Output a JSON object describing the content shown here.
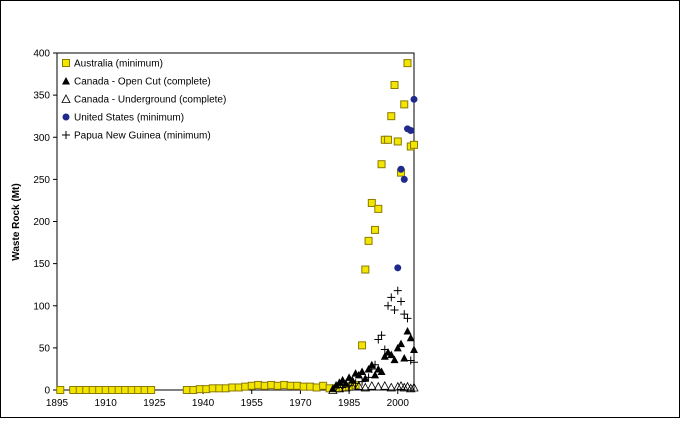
{
  "chart_data": {
    "type": "scatter",
    "ylabel": "Waste Rock (Mt)",
    "xlabel": "",
    "xlim": [
      1895,
      2005
    ],
    "ylim": [
      0,
      400
    ],
    "x_ticks": [
      "1895",
      "1910",
      "1925",
      "1940",
      "1955",
      "1970",
      "1985",
      "2000"
    ],
    "y_ticks": [
      "0",
      "50",
      "100",
      "150",
      "200",
      "250",
      "300",
      "350",
      "400"
    ],
    "legend_position": "top-left",
    "grid": false,
    "series": [
      {
        "name": "Australia (minimum)",
        "marker": "square",
        "color": "#f2e600",
        "edge": "#8c7a00",
        "points": [
          [
            1896,
            0
          ],
          [
            1900,
            0
          ],
          [
            1902,
            0
          ],
          [
            1904,
            0
          ],
          [
            1906,
            0
          ],
          [
            1908,
            0
          ],
          [
            1910,
            0
          ],
          [
            1912,
            0
          ],
          [
            1914,
            0
          ],
          [
            1916,
            0
          ],
          [
            1918,
            0
          ],
          [
            1920,
            0
          ],
          [
            1922,
            0
          ],
          [
            1924,
            0
          ],
          [
            1935,
            0
          ],
          [
            1937,
            0
          ],
          [
            1939,
            1
          ],
          [
            1941,
            1
          ],
          [
            1943,
            2
          ],
          [
            1945,
            2
          ],
          [
            1947,
            2
          ],
          [
            1949,
            3
          ],
          [
            1951,
            3
          ],
          [
            1953,
            4
          ],
          [
            1955,
            5
          ],
          [
            1957,
            6
          ],
          [
            1959,
            5
          ],
          [
            1961,
            6
          ],
          [
            1963,
            5
          ],
          [
            1965,
            6
          ],
          [
            1967,
            5
          ],
          [
            1969,
            5
          ],
          [
            1971,
            4
          ],
          [
            1973,
            4
          ],
          [
            1975,
            3
          ],
          [
            1977,
            5
          ],
          [
            1979,
            2
          ],
          [
            1981,
            2
          ],
          [
            1983,
            3
          ],
          [
            1985,
            4
          ],
          [
            1987,
            6
          ],
          [
            1989,
            53
          ],
          [
            1990,
            143
          ],
          [
            1991,
            177
          ],
          [
            1992,
            222
          ],
          [
            1993,
            190
          ],
          [
            1994,
            215
          ],
          [
            1995,
            268
          ],
          [
            1996,
            297
          ],
          [
            1997,
            297
          ],
          [
            1998,
            325
          ],
          [
            1999,
            362
          ],
          [
            2000,
            295
          ],
          [
            2001,
            258
          ],
          [
            2002,
            339
          ],
          [
            2003,
            388
          ],
          [
            2004,
            289
          ],
          [
            2005,
            291
          ]
        ]
      },
      {
        "name": "Canada - Open Cut (complete)",
        "marker": "triangle-filled",
        "color": "#000000",
        "points": [
          [
            1980,
            2
          ],
          [
            1981,
            6
          ],
          [
            1982,
            9
          ],
          [
            1983,
            12
          ],
          [
            1984,
            8
          ],
          [
            1985,
            15
          ],
          [
            1986,
            12
          ],
          [
            1987,
            20
          ],
          [
            1988,
            18
          ],
          [
            1989,
            22
          ],
          [
            1990,
            14
          ],
          [
            1991,
            25
          ],
          [
            1992,
            30
          ],
          [
            1993,
            18
          ],
          [
            1994,
            25
          ],
          [
            1995,
            22
          ],
          [
            1996,
            40
          ],
          [
            1997,
            45
          ],
          [
            1998,
            42
          ],
          [
            1999,
            36
          ],
          [
            2000,
            50
          ],
          [
            2001,
            55
          ],
          [
            2002,
            38
          ],
          [
            2003,
            70
          ],
          [
            2004,
            62
          ],
          [
            2005,
            48
          ]
        ]
      },
      {
        "name": "Canada - Underground (complete)",
        "marker": "triangle-open",
        "color": "#000000",
        "points": [
          [
            1980,
            0
          ],
          [
            1982,
            2
          ],
          [
            1984,
            3
          ],
          [
            1986,
            4
          ],
          [
            1988,
            5
          ],
          [
            1990,
            3
          ],
          [
            1992,
            5
          ],
          [
            1994,
            4
          ],
          [
            1996,
            5
          ],
          [
            1998,
            3
          ],
          [
            2000,
            4
          ],
          [
            2001,
            5
          ],
          [
            2002,
            3
          ],
          [
            2003,
            4
          ],
          [
            2004,
            2
          ],
          [
            2005,
            3
          ]
        ]
      },
      {
        "name": "United States (minimum)",
        "marker": "circle",
        "color": "#1f2a8c",
        "points": [
          [
            2000,
            145
          ],
          [
            2001,
            262
          ],
          [
            2002,
            250
          ],
          [
            2003,
            310
          ],
          [
            2004,
            308
          ],
          [
            2005,
            345
          ]
        ]
      },
      {
        "name": "Papua New Guinea (minimum)",
        "marker": "plus",
        "color": "#000000",
        "points": [
          [
            1983,
            3
          ],
          [
            1985,
            5
          ],
          [
            1987,
            8
          ],
          [
            1989,
            10
          ],
          [
            1991,
            15
          ],
          [
            1992,
            25
          ],
          [
            1993,
            30
          ],
          [
            1994,
            60
          ],
          [
            1995,
            65
          ],
          [
            1996,
            48
          ],
          [
            1997,
            100
          ],
          [
            1998,
            110
          ],
          [
            1999,
            95
          ],
          [
            2000,
            118
          ],
          [
            2001,
            105
          ],
          [
            2002,
            90
          ],
          [
            2003,
            85
          ],
          [
            2004,
            35
          ],
          [
            2005,
            33
          ]
        ]
      }
    ]
  }
}
